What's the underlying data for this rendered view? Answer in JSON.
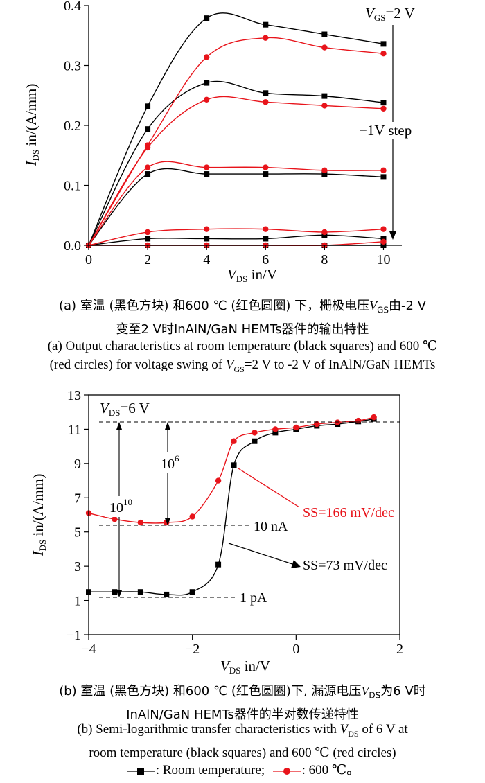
{
  "chart_data": [
    {
      "type": "line",
      "xlabel_main": "V",
      "xlabel_sub": "DS",
      "xlabel_tail": " in/V",
      "ylabel_main": "I",
      "ylabel_sub": "DS",
      "ylabel_tail": " in/(A/mm)",
      "xlim": [
        0,
        10.6
      ],
      "ylim": [
        0,
        0.4
      ],
      "xticks": [
        "0",
        "2",
        "4",
        "6",
        "8",
        "10"
      ],
      "yticks": [
        "0.0",
        "0.1",
        "0.2",
        "0.3",
        "0.4"
      ],
      "annotations": {
        "vgs_main": "V",
        "vgs_sub": "GS",
        "vgs_tail": "=2 V",
        "step": "−1V step"
      },
      "series": [
        {
          "group": "room",
          "x": [
            0,
            2,
            4,
            6,
            8,
            10
          ],
          "y": [
            0,
            0.232,
            0.379,
            0.368,
            0.352,
            0.336
          ]
        },
        {
          "group": "room",
          "x": [
            0,
            2,
            4,
            6,
            8,
            10
          ],
          "y": [
            0,
            0.194,
            0.271,
            0.254,
            0.249,
            0.238
          ]
        },
        {
          "group": "room",
          "x": [
            0,
            2,
            4,
            6,
            8,
            10
          ],
          "y": [
            0,
            0.119,
            0.119,
            0.119,
            0.119,
            0.114
          ]
        },
        {
          "group": "room",
          "x": [
            0,
            2,
            4,
            6,
            8,
            10
          ],
          "y": [
            0,
            0.011,
            0.011,
            0.011,
            0.017,
            0.011
          ]
        },
        {
          "group": "room",
          "x": [
            0,
            2,
            4,
            6,
            8,
            10
          ],
          "y": [
            0,
            0,
            0,
            0,
            0,
            0
          ]
        },
        {
          "group": "hot",
          "x": [
            0,
            2,
            4,
            6,
            8,
            10
          ],
          "y": [
            0,
            0.167,
            0.314,
            0.346,
            0.33,
            0.32
          ]
        },
        {
          "group": "hot",
          "x": [
            0,
            2,
            4,
            6,
            8,
            10
          ],
          "y": [
            0,
            0.163,
            0.243,
            0.239,
            0.233,
            0.228
          ]
        },
        {
          "group": "hot",
          "x": [
            0,
            2,
            4,
            6,
            8,
            10
          ],
          "y": [
            0,
            0.13,
            0.13,
            0.13,
            0.125,
            0.125
          ]
        },
        {
          "group": "hot",
          "x": [
            0,
            2,
            4,
            6,
            8,
            10
          ],
          "y": [
            0,
            0.022,
            0.027,
            0.027,
            0.022,
            0.027
          ]
        },
        {
          "group": "hot",
          "x": [
            0,
            2,
            4,
            6,
            8,
            10
          ],
          "y": [
            0,
            0,
            0,
            0,
            0,
            0.006
          ]
        }
      ]
    },
    {
      "type": "line",
      "xlabel_main": "V",
      "xlabel_sub": "DS",
      "xlabel_tail": " in/V",
      "ylabel_main": "I",
      "ylabel_sub": "DS",
      "ylabel_tail": " in/(A/mm)",
      "xlim": [
        -4,
        2
      ],
      "ylim": [
        -1,
        13
      ],
      "xticks": [
        "−4",
        "−2",
        "0",
        "2"
      ],
      "yticks": [
        "−1",
        "1",
        "3",
        "5",
        "7",
        "9",
        "11",
        "13"
      ],
      "annotations": {
        "vds_main": "V",
        "vds_sub": "DS",
        "vds_tail": "=6 V",
        "ratio_big": "10",
        "ratio_big_exp": "10",
        "ratio_small": "10",
        "ratio_small_exp": "6",
        "level_10na": "10 nA",
        "level_1pa": "1 pA",
        "ss_hot": "SS=166 mV/dec",
        "ss_room": "SS=73 mV/dec"
      },
      "series": [
        {
          "group": "room",
          "x": [
            -4,
            -3.5,
            -3,
            -2.5,
            -2,
            -1.5,
            -1.2,
            -0.8,
            -0.4,
            0,
            0.4,
            0.8,
            1.2,
            1.5
          ],
          "y": [
            1.5,
            1.5,
            1.5,
            1.35,
            1.5,
            3.1,
            8.9,
            10.3,
            10.8,
            11.0,
            11.2,
            11.3,
            11.45,
            11.6
          ]
        },
        {
          "group": "hot",
          "x": [
            -4,
            -3.5,
            -3,
            -2.5,
            -2,
            -1.5,
            -1.2,
            -0.8,
            -0.4,
            0,
            0.4,
            0.8,
            1.2,
            1.5
          ],
          "y": [
            6.1,
            5.75,
            5.55,
            5.55,
            5.9,
            8.0,
            10.3,
            10.8,
            11.0,
            11.1,
            11.3,
            11.4,
            11.5,
            11.7
          ]
        }
      ]
    }
  ],
  "captions": {
    "a_cn_line1_pre": "(a) 室温 (黑色方块) 和600 ℃ (红色圆圈) 下，栅极电压",
    "a_cn_line1_v": "V",
    "a_cn_line1_sub": "GS",
    "a_cn_line1_post": "由-2 V",
    "a_cn_line2": "变至2 V时InAlN/GaN HEMTs器件的输出特性",
    "a_en_line1": "(a) Output characteristics at room temperature (black squares) and 600 ℃",
    "a_en_line2_pre": "(red circles) for voltage swing of ",
    "a_en_line2_v": "V",
    "a_en_line2_sub": "GS",
    "a_en_line2_post": "=2 V to -2 V of InAlN/GaN HEMTs",
    "b_cn_line1_pre": "(b) 室温 (黑色方块) 和600 ℃ (红色圆圈)下, 漏源电压",
    "b_cn_line1_v": "V",
    "b_cn_line1_sub": "DS",
    "b_cn_line1_post": "为6 V时",
    "b_cn_line2": "InAlN/GaN HEMTs器件的半对数传递特性",
    "b_en_line1_pre": "(b) Semi-logarithmic transfer characteristics with ",
    "b_en_line1_v": "V",
    "b_en_line1_sub": "DS",
    "b_en_line1_post": " of 6 V at",
    "b_en_line2": "room temperature (black squares) and 600 ℃ (red circles)"
  },
  "legend": {
    "room_label": ": Room temperature;",
    "hot_label": ": 600 ℃。"
  },
  "colors": {
    "room": "#000000",
    "hot": "#e8141b"
  }
}
